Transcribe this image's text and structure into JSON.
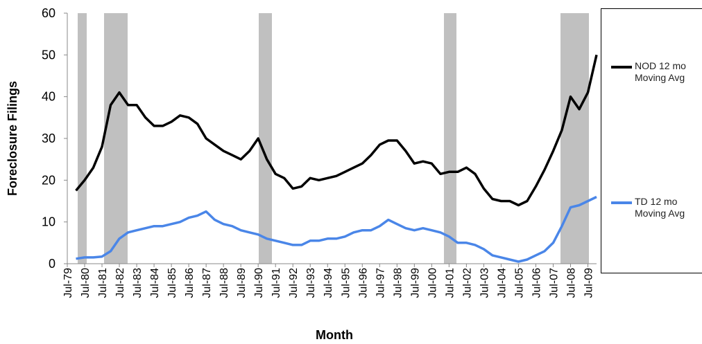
{
  "chart_data": {
    "type": "line",
    "y_label": "Foreclosure Filings",
    "x_label": "Month",
    "categories": [
      "Jul-79",
      null,
      "Jul-80",
      null,
      "Jul-81",
      null,
      "Jul-82",
      null,
      "Jul-83",
      null,
      "Jul-84",
      null,
      "Jul-85",
      null,
      "Jul-86",
      null,
      "Jul-87",
      null,
      "Jul-88",
      null,
      "Jul-89",
      null,
      "Jul-90",
      null,
      "Jul-91",
      null,
      "Jul-92",
      null,
      "Jul-93",
      null,
      "Jul-94",
      null,
      "Jul-95",
      null,
      "Jul-96",
      null,
      "Jul-97",
      null,
      "Jul-98",
      null,
      "Jul-99",
      null,
      "Jul-00",
      null,
      "Jul-01",
      null,
      "Jul-02",
      null,
      "Jul-03",
      null,
      "Jul-04",
      null,
      "Jul-05",
      null,
      "Jul-06",
      null,
      "Jul-07",
      null,
      "Jul-08",
      null,
      "Jul-09",
      null
    ],
    "series": [
      {
        "name": "NOD 12 mo Moving Avg",
        "color": "#000000",
        "values": [
          null,
          17.5,
          20,
          23,
          28,
          38,
          41,
          38,
          38,
          35,
          33,
          33,
          34,
          35.5,
          35,
          33.5,
          30,
          28.5,
          27,
          26,
          25,
          27,
          30,
          25,
          21.5,
          20.5,
          18,
          18.5,
          20.5,
          20,
          20.5,
          21,
          22,
          23,
          24,
          26,
          28.5,
          29.5,
          29.5,
          27,
          24,
          24.5,
          24,
          21.5,
          22,
          22,
          23,
          21.5,
          18,
          15.5,
          15,
          15,
          14,
          15,
          18.5,
          22.5,
          27,
          32,
          40,
          37,
          41,
          50
        ]
      },
      {
        "name": "TD 12 mo Moving Avg",
        "color": "#4a86e8",
        "values": [
          null,
          1.2,
          1.5,
          1.5,
          1.7,
          3,
          6,
          7.5,
          8,
          8.5,
          9,
          9,
          9.5,
          10,
          11,
          11.5,
          12.5,
          10.5,
          9.5,
          9,
          8,
          7.5,
          7,
          6,
          5.5,
          5,
          4.5,
          4.5,
          5.5,
          5.5,
          6,
          6,
          6.5,
          7.5,
          8,
          8,
          9,
          10.5,
          9.5,
          8.5,
          8,
          8.5,
          8,
          7.5,
          6.5,
          5,
          5,
          4.5,
          3.5,
          2,
          1.5,
          1,
          0.5,
          1,
          2,
          3,
          5,
          9,
          13.5,
          14,
          15,
          16
        ]
      }
    ],
    "ylim": [
      0,
      60
    ],
    "yticks": [
      0,
      10,
      20,
      30,
      40,
      50,
      60
    ],
    "grid": false
  }
}
